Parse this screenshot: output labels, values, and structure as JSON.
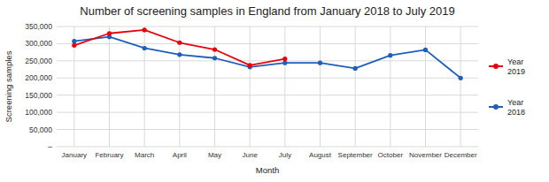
{
  "chart_data": {
    "type": "line",
    "title": "Number of screening samples in England from January 2018 to July 2019",
    "x_label": "Month",
    "y_label": "Screening samples",
    "categories": [
      "January",
      "February",
      "March",
      "April",
      "May",
      "June",
      "July",
      "August",
      "September",
      "October",
      "November",
      "December"
    ],
    "series": [
      {
        "name": "Year\n2018",
        "color": "#1f5fba",
        "marker": "circle",
        "values": [
          307000,
          320000,
          287000,
          268000,
          258000,
          232000,
          244000,
          244000,
          228000,
          266000,
          282000,
          200000
        ]
      },
      {
        "name": "Year\n2019",
        "color": "#e8000b",
        "marker": "circle",
        "values": [
          295000,
          330000,
          340000,
          303000,
          283000,
          237000,
          256000,
          null,
          null,
          null,
          null,
          null
        ]
      }
    ],
    "ylim": [
      0,
      350000
    ],
    "yticks": [
      {
        "value": 0,
        "label": "–"
      },
      {
        "value": 50000,
        "label": "50,000"
      },
      {
        "value": 100000,
        "label": "100,000"
      },
      {
        "value": 150000,
        "label": "150,000"
      },
      {
        "value": 200000,
        "label": "200,000"
      },
      {
        "value": 250000,
        "label": "250,000"
      },
      {
        "value": 300000,
        "label": "300,000"
      },
      {
        "value": 350000,
        "label": "350,000"
      }
    ],
    "grid": true
  }
}
